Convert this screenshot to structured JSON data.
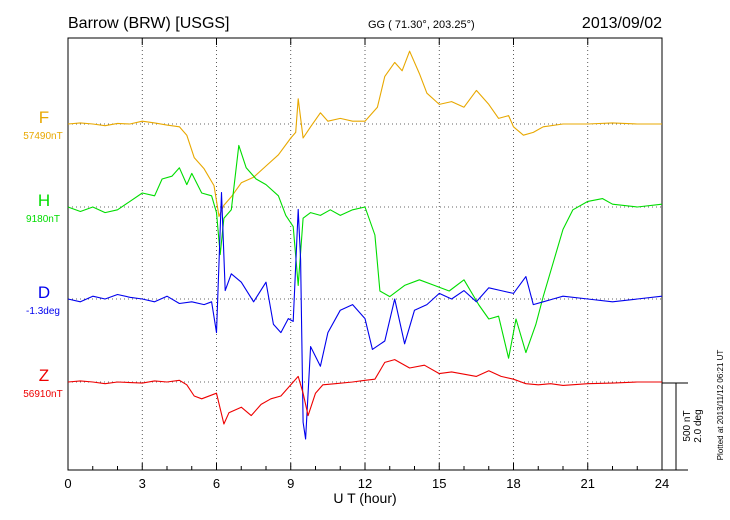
{
  "header": {
    "station": "Barrow (BRW)  [USGS]",
    "coords": "GG ( 71.30°, 203.25°)",
    "date": "2013/09/02"
  },
  "side_note": "Plotted at 2013/11/12 06:21  UT",
  "scale": {
    "nt": "500 nT",
    "deg": "2.0 deg"
  },
  "chart_data": {
    "type": "line",
    "xlabel": "U T (hour)",
    "xlim": [
      0,
      24
    ],
    "xticks": [
      0,
      3,
      6,
      9,
      12,
      15,
      18,
      21,
      24
    ],
    "xtick_labels": [
      "0",
      "3",
      "6",
      "9",
      "12",
      "15",
      "18",
      "21",
      "24"
    ],
    "grid": true,
    "series": [
      {
        "name": "F",
        "baseline_label": "57490nT",
        "color": "#e8a800",
        "points": [
          [
            0,
            0
          ],
          [
            0.5,
            2
          ],
          [
            1,
            0
          ],
          [
            1.5,
            -3
          ],
          [
            2,
            1
          ],
          [
            2.5,
            0
          ],
          [
            3,
            5
          ],
          [
            3.5,
            2
          ],
          [
            4,
            -2
          ],
          [
            4.5,
            -5
          ],
          [
            4.8,
            -20
          ],
          [
            5.1,
            -60
          ],
          [
            5.5,
            -80
          ],
          [
            5.9,
            -110
          ],
          [
            6.1,
            -165
          ],
          [
            6.3,
            -145
          ],
          [
            6.6,
            -130
          ],
          [
            7,
            -105
          ],
          [
            7.5,
            -95
          ],
          [
            8,
            -75
          ],
          [
            8.5,
            -55
          ],
          [
            9,
            -25
          ],
          [
            9.2,
            -15
          ],
          [
            9.3,
            45
          ],
          [
            9.5,
            -25
          ],
          [
            9.8,
            -5
          ],
          [
            10.2,
            20
          ],
          [
            10.5,
            5
          ],
          [
            11,
            10
          ],
          [
            11.5,
            5
          ],
          [
            12,
            5
          ],
          [
            12.5,
            30
          ],
          [
            12.8,
            85
          ],
          [
            13.2,
            110
          ],
          [
            13.5,
            95
          ],
          [
            13.8,
            130
          ],
          [
            14.2,
            90
          ],
          [
            14.5,
            55
          ],
          [
            15,
            35
          ],
          [
            15.5,
            40
          ],
          [
            16,
            30
          ],
          [
            16.5,
            60
          ],
          [
            17,
            35
          ],
          [
            17.4,
            10
          ],
          [
            17.8,
            15
          ],
          [
            18,
            -5
          ],
          [
            18.4,
            -20
          ],
          [
            18.8,
            -15
          ],
          [
            19.2,
            -5
          ],
          [
            20,
            0
          ],
          [
            21,
            0
          ],
          [
            22,
            2
          ],
          [
            23,
            0
          ],
          [
            24,
            0
          ]
        ]
      },
      {
        "name": "H",
        "baseline_label": "9180nT",
        "color": "#00dd00",
        "points": [
          [
            0,
            0
          ],
          [
            0.5,
            -8
          ],
          [
            1,
            0
          ],
          [
            1.5,
            -10
          ],
          [
            2,
            -5
          ],
          [
            2.5,
            10
          ],
          [
            3,
            25
          ],
          [
            3.5,
            20
          ],
          [
            3.8,
            50
          ],
          [
            4.2,
            55
          ],
          [
            4.5,
            70
          ],
          [
            4.8,
            40
          ],
          [
            5,
            60
          ],
          [
            5.4,
            25
          ],
          [
            5.8,
            20
          ],
          [
            6,
            -10
          ],
          [
            6.15,
            -85
          ],
          [
            6.3,
            -20
          ],
          [
            6.6,
            -5
          ],
          [
            6.9,
            110
          ],
          [
            7.2,
            70
          ],
          [
            7.6,
            50
          ],
          [
            8,
            40
          ],
          [
            8.5,
            20
          ],
          [
            8.8,
            -15
          ],
          [
            9.1,
            -35
          ],
          [
            9.3,
            -140
          ],
          [
            9.5,
            -20
          ],
          [
            9.8,
            -10
          ],
          [
            10.2,
            -15
          ],
          [
            10.6,
            -5
          ],
          [
            11,
            -15
          ],
          [
            11.5,
            -5
          ],
          [
            12,
            0
          ],
          [
            12.4,
            -50
          ],
          [
            12.6,
            -150
          ],
          [
            13,
            -160
          ],
          [
            13.6,
            -140
          ],
          [
            14.2,
            -130
          ],
          [
            14.8,
            -140
          ],
          [
            15.4,
            -150
          ],
          [
            16,
            -130
          ],
          [
            16.6,
            -175
          ],
          [
            17,
            -200
          ],
          [
            17.4,
            -195
          ],
          [
            17.8,
            -270
          ],
          [
            18.1,
            -200
          ],
          [
            18.5,
            -260
          ],
          [
            18.9,
            -210
          ],
          [
            19.2,
            -160
          ],
          [
            19.6,
            -100
          ],
          [
            20,
            -40
          ],
          [
            20.4,
            -5
          ],
          [
            21,
            10
          ],
          [
            21.6,
            15
          ],
          [
            22,
            5
          ],
          [
            23,
            0
          ],
          [
            24,
            5
          ]
        ]
      },
      {
        "name": "D",
        "baseline_label": "-1.3deg",
        "color": "#0000ee",
        "points": [
          [
            0,
            0
          ],
          [
            0.5,
            -5
          ],
          [
            1,
            5
          ],
          [
            1.5,
            0
          ],
          [
            2,
            8
          ],
          [
            2.5,
            3
          ],
          [
            3,
            0
          ],
          [
            3.5,
            -5
          ],
          [
            4,
            5
          ],
          [
            4.5,
            -8
          ],
          [
            5,
            -5
          ],
          [
            5.5,
            -10
          ],
          [
            5.8,
            -5
          ],
          [
            6,
            -60
          ],
          [
            6.2,
            190
          ],
          [
            6.35,
            15
          ],
          [
            6.6,
            45
          ],
          [
            7,
            30
          ],
          [
            7.5,
            -5
          ],
          [
            8,
            30
          ],
          [
            8.3,
            -45
          ],
          [
            8.6,
            -60
          ],
          [
            8.9,
            -35
          ],
          [
            9.1,
            -40
          ],
          [
            9.3,
            160
          ],
          [
            9.4,
            70
          ],
          [
            9.5,
            -220
          ],
          [
            9.6,
            -250
          ],
          [
            9.8,
            -85
          ],
          [
            10.2,
            -120
          ],
          [
            10.5,
            -60
          ],
          [
            11,
            -20
          ],
          [
            11.5,
            -10
          ],
          [
            12,
            -35
          ],
          [
            12.3,
            -90
          ],
          [
            12.8,
            -75
          ],
          [
            13.2,
            0
          ],
          [
            13.6,
            -80
          ],
          [
            14,
            -20
          ],
          [
            14.5,
            -10
          ],
          [
            15,
            10
          ],
          [
            15.5,
            0
          ],
          [
            16,
            15
          ],
          [
            16.5,
            -5
          ],
          [
            17,
            20
          ],
          [
            17.5,
            15
          ],
          [
            18,
            10
          ],
          [
            18.5,
            40
          ],
          [
            18.8,
            -10
          ],
          [
            19.2,
            -5
          ],
          [
            19.6,
            0
          ],
          [
            20,
            5
          ],
          [
            21,
            0
          ],
          [
            22,
            -5
          ],
          [
            23,
            0
          ],
          [
            24,
            5
          ]
        ]
      },
      {
        "name": "Z",
        "baseline_label": "56910nT",
        "color": "#ee0000",
        "points": [
          [
            0,
            0
          ],
          [
            0.5,
            2
          ],
          [
            1,
            0
          ],
          [
            1.5,
            -3
          ],
          [
            2,
            0
          ],
          [
            3,
            -2
          ],
          [
            3.5,
            2
          ],
          [
            4,
            0
          ],
          [
            4.5,
            3
          ],
          [
            4.8,
            -5
          ],
          [
            5.1,
            -25
          ],
          [
            5.4,
            -30
          ],
          [
            6,
            -20
          ],
          [
            6.3,
            -75
          ],
          [
            6.5,
            -55
          ],
          [
            7,
            -45
          ],
          [
            7.4,
            -60
          ],
          [
            7.8,
            -40
          ],
          [
            8.2,
            -30
          ],
          [
            8.6,
            -25
          ],
          [
            9,
            -5
          ],
          [
            9.3,
            10
          ],
          [
            9.5,
            -20
          ],
          [
            9.7,
            -60
          ],
          [
            10,
            -20
          ],
          [
            10.3,
            -5
          ],
          [
            10.8,
            -3
          ],
          [
            11.5,
            0
          ],
          [
            12,
            3
          ],
          [
            12.4,
            5
          ],
          [
            12.8,
            35
          ],
          [
            13.2,
            40
          ],
          [
            13.8,
            25
          ],
          [
            14.4,
            30
          ],
          [
            15,
            15
          ],
          [
            15.5,
            18
          ],
          [
            16,
            14
          ],
          [
            16.5,
            10
          ],
          [
            17,
            20
          ],
          [
            17.5,
            10
          ],
          [
            18,
            5
          ],
          [
            18.5,
            -3
          ],
          [
            19,
            -5
          ],
          [
            19.5,
            -3
          ],
          [
            20,
            -6
          ],
          [
            21,
            -3
          ],
          [
            22,
            -2
          ],
          [
            23,
            0
          ],
          [
            24,
            0
          ]
        ]
      }
    ]
  }
}
